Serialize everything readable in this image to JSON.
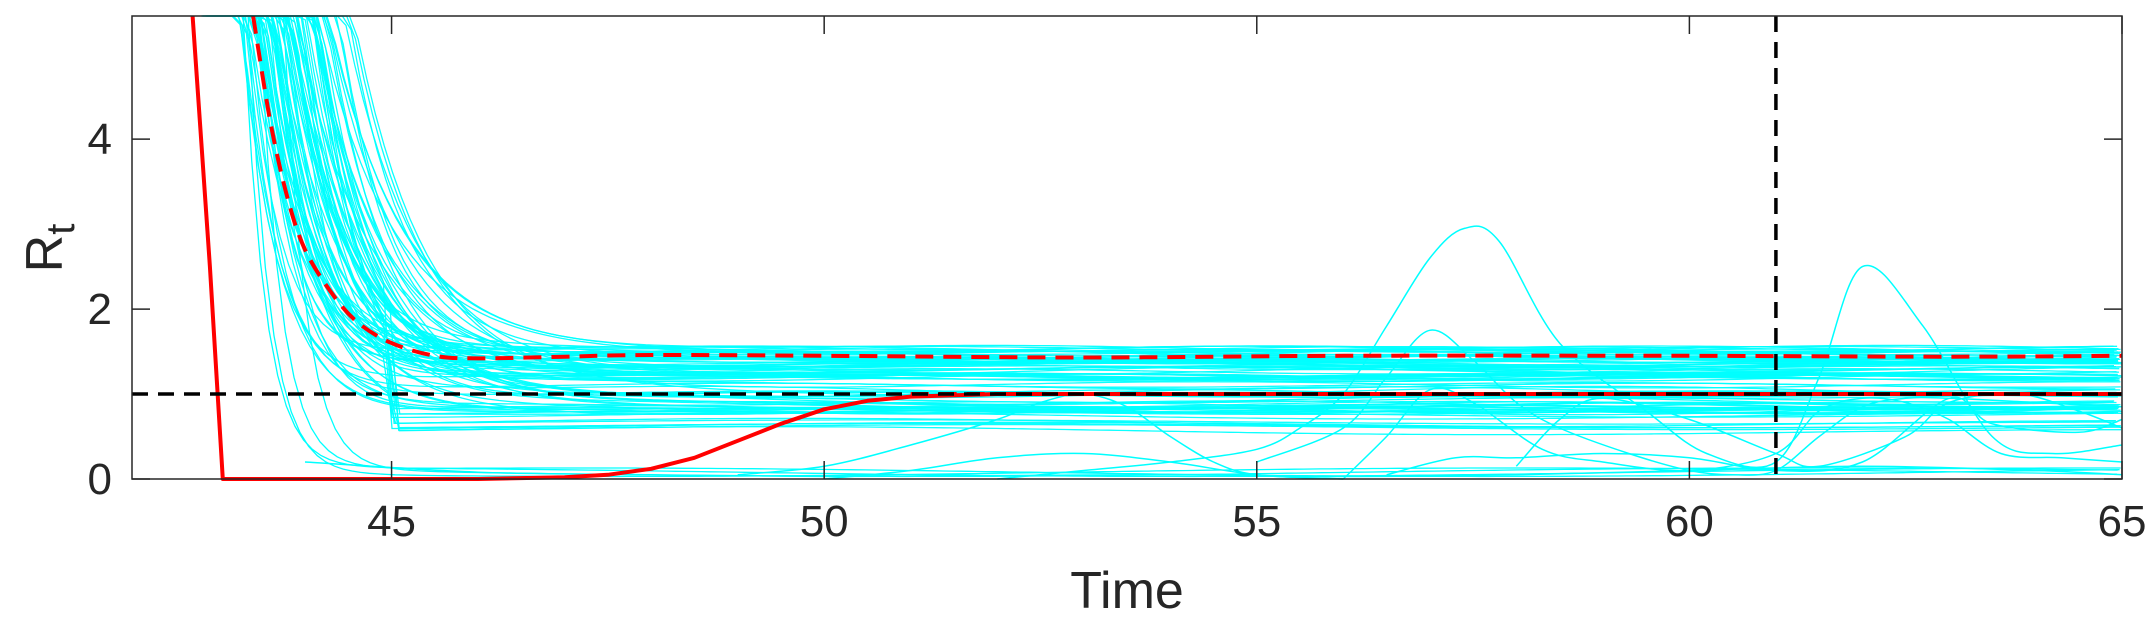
{
  "chart_data": {
    "type": "line",
    "xlabel": "Time",
    "ylabel": {
      "main": "R",
      "sub": "t"
    },
    "xlim": [
      42,
      65
    ],
    "ylim": [
      0,
      5.45
    ],
    "xticks": [
      45,
      50,
      55,
      60,
      65
    ],
    "yticks": [
      0,
      2,
      4
    ],
    "grid": false,
    "reference_lines": [
      {
        "orientation": "horizontal",
        "value": 1,
        "color": "#000000",
        "style": "dashed"
      },
      {
        "orientation": "vertical",
        "value": 61,
        "color": "#000000",
        "style": "dashed"
      }
    ],
    "colors": {
      "ensemble": "#00ffff",
      "mean": "#ff0000",
      "axes": "#262626",
      "reference": "#000000"
    },
    "series": [
      {
        "role": "lower-solid",
        "color": "#ff0000",
        "style": "solid",
        "x": [
          42.7,
          42.9,
          43.05,
          43.3,
          44,
          45,
          46,
          47,
          47.5,
          48,
          48.5,
          49,
          49.5,
          50,
          50.5,
          51,
          52,
          55,
          60,
          65
        ],
        "y": [
          5.45,
          2.5,
          0,
          0,
          0,
          0,
          0,
          0.02,
          0.05,
          0.12,
          0.25,
          0.45,
          0.65,
          0.82,
          0.92,
          0.97,
          1,
          1,
          1,
          1
        ]
      },
      {
        "role": "upper-dashed",
        "color": "#ff0000",
        "style": "dashed",
        "x": [
          43.4,
          43.6,
          43.8,
          44,
          44.3,
          44.6,
          45,
          45.5,
          46,
          47,
          48,
          50,
          53,
          56,
          60,
          63,
          65
        ],
        "y": [
          5.45,
          4.2,
          3.3,
          2.7,
          2.2,
          1.85,
          1.6,
          1.45,
          1.42,
          1.44,
          1.46,
          1.45,
          1.43,
          1.45,
          1.45,
          1.44,
          1.45
        ]
      },
      {
        "role": "lower-dashed",
        "color": "#ff0000",
        "style": "dashed",
        "x": [
          51,
          55,
          60,
          65
        ],
        "y": [
          1,
          1,
          1,
          1
        ]
      }
    ],
    "ensemble": {
      "color": "#00ffff",
      "decay_start_x": [
        42.8,
        43.6
      ],
      "decay_plateau": [
        0.55,
        1.55
      ],
      "excursion_curves": [
        {
          "x": [
            52,
            53,
            54,
            55,
            55.5,
            56,
            56.5,
            57,
            57.4,
            57.8,
            58.5,
            59.5,
            60.2,
            61,
            61.5,
            62,
            62.7,
            63.5,
            64.2,
            65
          ],
          "y": [
            0,
            0.1,
            0.2,
            0.35,
            0.6,
            1.0,
            1.8,
            2.6,
            2.95,
            2.8,
            1.6,
            0.8,
            0.3,
            0.2,
            1.2,
            2.5,
            1.8,
            0.5,
            0.3,
            0.4
          ]
        },
        {
          "x": [
            55,
            56,
            56.5,
            57,
            57.5,
            58,
            58.5,
            59.3,
            60,
            60.5,
            61,
            61.5,
            62,
            62.5,
            63,
            64,
            65
          ],
          "y": [
            0.2,
            0.6,
            1.2,
            1.75,
            1.4,
            0.9,
            0.6,
            0.3,
            0.1,
            0.05,
            0.1,
            0.5,
            0.85,
            0.95,
            0.95,
            0.9,
            0.85
          ]
        },
        {
          "x": [
            56,
            56.5,
            57,
            57.5,
            58.3,
            59,
            60,
            61,
            61.5,
            62,
            62.5,
            63,
            63.6,
            64.3,
            65
          ],
          "y": [
            0,
            0.5,
            1.05,
            0.9,
            0.35,
            0.2,
            0.1,
            0.3,
            0.8,
            0.95,
            0.9,
            0.7,
            0.3,
            0.25,
            0.2
          ]
        },
        {
          "x": [
            49,
            50,
            51,
            52,
            52.5,
            53,
            53.5,
            54,
            54.5,
            55,
            56
          ],
          "y": [
            0.05,
            0.15,
            0.4,
            0.7,
            0.9,
            1.0,
            0.85,
            0.5,
            0.2,
            0.05,
            0
          ]
        },
        {
          "x": [
            50,
            51,
            52,
            53,
            54,
            55,
            56
          ],
          "y": [
            0,
            0.1,
            0.25,
            0.3,
            0.2,
            0.05,
            0
          ]
        },
        {
          "x": [
            56.5,
            57.3,
            58,
            59,
            60,
            61,
            62,
            63,
            63.5,
            64.5,
            65
          ],
          "y": [
            0.05,
            0.25,
            0.25,
            0.3,
            0.25,
            0.1,
            0.2,
            0.95,
            0.65,
            0.55,
            0.7
          ]
        },
        {
          "x": [
            58,
            58.5,
            59,
            60,
            61,
            61.5,
            62.5,
            63,
            63.8,
            64.5,
            65
          ],
          "y": [
            0.15,
            0.7,
            0.95,
            0.7,
            0.3,
            0.15,
            0.5,
            0.9,
            1.0,
            0.8,
            0.6
          ]
        },
        {
          "x": [
            44,
            46,
            48,
            50,
            52,
            54,
            56,
            58,
            60,
            62,
            64,
            65
          ],
          "y": [
            0.2,
            0.08,
            0.05,
            0.03,
            0.04,
            0.05,
            0.03,
            0.05,
            0.1,
            0.15,
            0.1,
            0.05
          ]
        }
      ]
    }
  }
}
